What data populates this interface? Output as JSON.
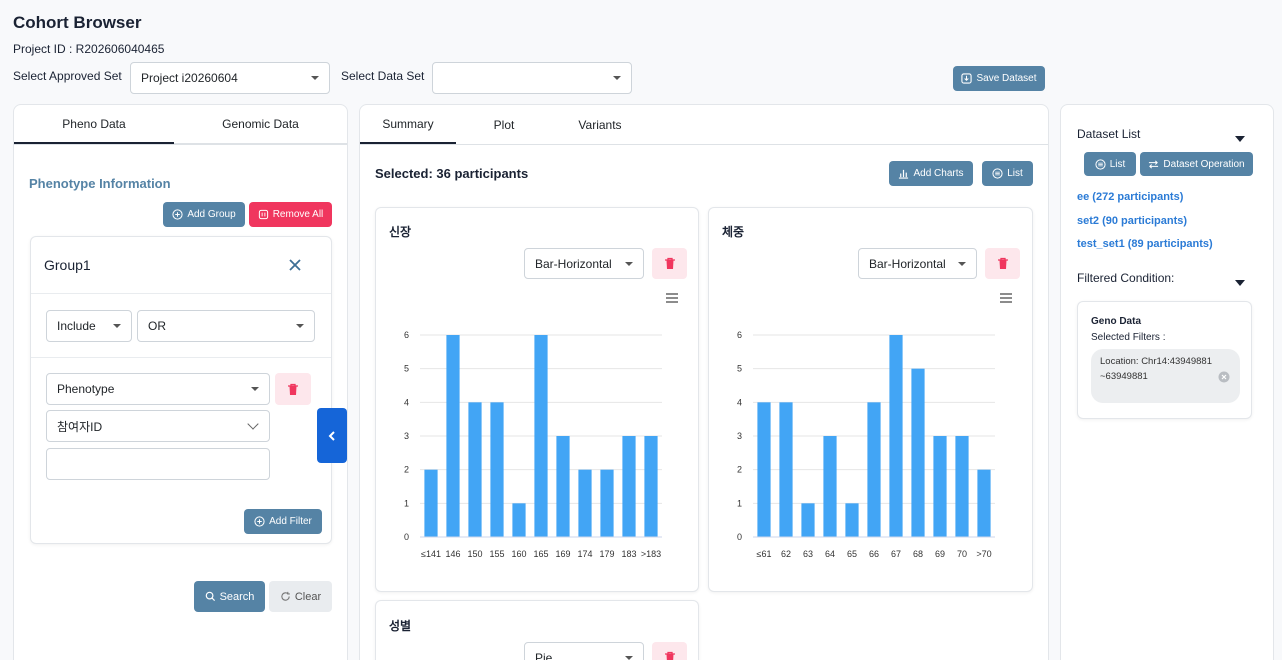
{
  "header": {
    "title": "Cohort Browser",
    "project_id": "Project ID : R202606040465",
    "approved_set_label": "Select Approved Set",
    "approved_set_value": "Project i20260604",
    "data_set_label": "Select Data Set",
    "data_set_value": "",
    "save_dataset": "Save Dataset"
  },
  "left": {
    "tabs": [
      "Pheno Data",
      "Genomic Data"
    ],
    "section_title": "Phenotype Information",
    "add_group": "Add Group",
    "remove_all": "Remove All",
    "group_title": "Group1",
    "include_value": "Include",
    "operator_value": "OR",
    "filter_type": "Phenotype",
    "filter_field": "참여자ID",
    "filter_value": "",
    "add_filter": "Add Filter",
    "search": "Search",
    "clear": "Clear"
  },
  "center": {
    "tabs": [
      "Summary",
      "Plot",
      "Variants"
    ],
    "selected_text": "Selected: 36 participants",
    "add_charts": "Add Charts",
    "list": "List",
    "card3_title": "성별",
    "card3_type": "Pie"
  },
  "right": {
    "dataset_list_title": "Dataset List",
    "list_button": "List",
    "dataset_operation": "Dataset Operation",
    "datasets": [
      "ee (272 participants)",
      "set2 (90 participants)",
      "test_set1 (89 participants)"
    ],
    "filtered_title": "Filtered Condition:",
    "geno_title": "Geno Data",
    "selected_filters": "Selected Filters :",
    "location_text": "Location: Chr14:43949881~63949881"
  },
  "colors": {
    "accent": "#5583a5",
    "danger": "#f0365e",
    "bar": "#42a5f5",
    "link": "#2b7bd6"
  },
  "chart_data": [
    {
      "type": "bar",
      "title": "신장",
      "chart_type_select": "Bar-Horizontal",
      "categories": [
        "≤141",
        "146",
        "150",
        "155",
        "160",
        "165",
        "169",
        "174",
        "179",
        "183",
        ">183"
      ],
      "values": [
        2,
        6,
        4,
        4,
        1,
        6,
        3,
        2,
        2,
        3,
        3
      ],
      "ylim": [
        0,
        6
      ],
      "yticks": [
        0,
        1,
        2,
        3,
        4,
        5,
        6
      ],
      "grid": true
    },
    {
      "type": "bar",
      "title": "체중",
      "chart_type_select": "Bar-Horizontal",
      "categories": [
        "≤61",
        "62",
        "63",
        "64",
        "65",
        "66",
        "67",
        "68",
        "69",
        "70",
        ">70"
      ],
      "values": [
        4,
        4,
        1,
        3,
        1,
        4,
        6,
        5,
        3,
        3,
        2
      ],
      "ylim": [
        0,
        6
      ],
      "yticks": [
        0,
        1,
        2,
        3,
        4,
        5,
        6
      ],
      "grid": true
    }
  ]
}
